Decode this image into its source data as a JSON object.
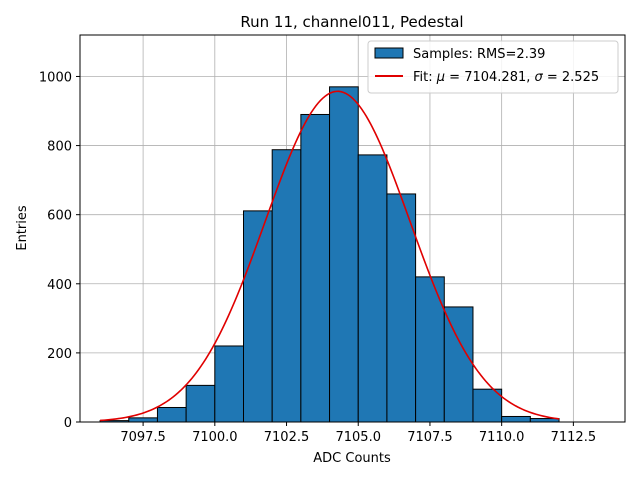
{
  "chart_data": {
    "type": "bar",
    "title": "Run 11, channel011, Pedestal",
    "xlabel": "ADC Counts",
    "ylabel": "Entries",
    "xlim": [
      7095.3,
      7114.3
    ],
    "ylim": [
      0,
      1120
    ],
    "grid": true,
    "legend_position": "top-right",
    "x_ticks": [
      7097.5,
      7100.0,
      7102.5,
      7105.0,
      7107.5,
      7110.0,
      7112.5
    ],
    "x_tick_labels": [
      "7097.5",
      "7100.0",
      "7102.5",
      "7105.0",
      "7107.5",
      "7110.0",
      "7112.5"
    ],
    "y_ticks": [
      0,
      200,
      400,
      600,
      800,
      1000
    ],
    "y_tick_labels": [
      "0",
      "200",
      "400",
      "600",
      "800",
      "1000"
    ],
    "histogram": {
      "name": "Samples: RMS=2.39",
      "color": "#1f77b4",
      "edge_color": "#000000",
      "bins": [
        {
          "x0": 7096,
          "x1": 7097,
          "count": 4
        },
        {
          "x0": 7097,
          "x1": 7098,
          "count": 12
        },
        {
          "x0": 7098,
          "x1": 7099,
          "count": 42
        },
        {
          "x0": 7099,
          "x1": 7100,
          "count": 106
        },
        {
          "x0": 7100,
          "x1": 7101,
          "count": 220
        },
        {
          "x0": 7101,
          "x1": 7102,
          "count": 611
        },
        {
          "x0": 7102,
          "x1": 7103,
          "count": 788
        },
        {
          "x0": 7103,
          "x1": 7104,
          "count": 890
        },
        {
          "x0": 7104,
          "x1": 7105,
          "count": 970
        },
        {
          "x0": 7105,
          "x1": 7106,
          "count": 773
        },
        {
          "x0": 7106,
          "x1": 7107,
          "count": 660
        },
        {
          "x0": 7107,
          "x1": 7108,
          "count": 420
        },
        {
          "x0": 7108,
          "x1": 7109,
          "count": 333
        },
        {
          "x0": 7109,
          "x1": 7110,
          "count": 95
        },
        {
          "x0": 7110,
          "x1": 7111,
          "count": 16
        },
        {
          "x0": 7111,
          "x1": 7112,
          "count": 10
        }
      ]
    },
    "fit": {
      "name_prefix": "Fit: ",
      "mu_symbol": "μ",
      "mu_text": " = 7104.281, ",
      "sigma_symbol": "σ",
      "sigma_text": " = 2.525",
      "color": "#e00000",
      "mu": 7104.281,
      "sigma": 2.525,
      "amplitude": 957,
      "x_range": [
        7096,
        7112
      ]
    }
  }
}
